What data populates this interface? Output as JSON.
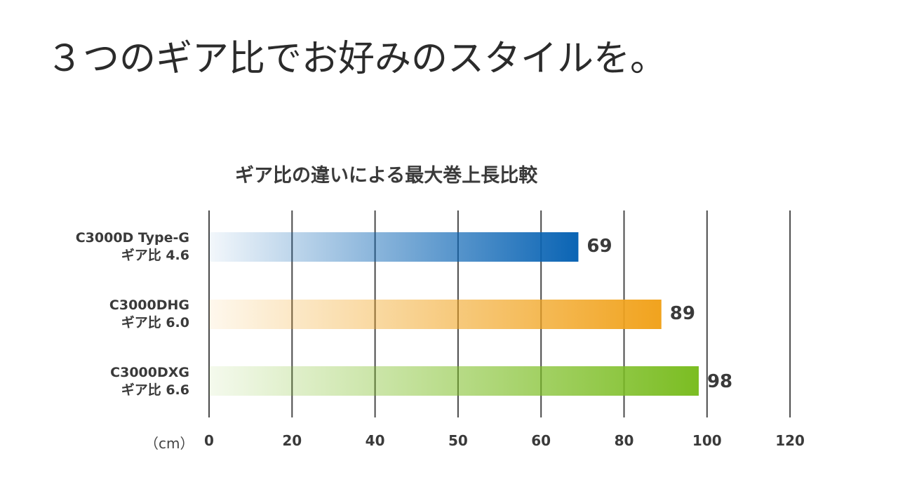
{
  "headline": "３つのギア比でお好みのスタイルを。",
  "chart_data": {
    "type": "bar",
    "orientation": "horizontal",
    "title": "ギア比の違いによる最大巻上長比較",
    "unit_label": "（cm）",
    "categories": [
      {
        "line1": "C3000D Type-G",
        "line2": "ギア比 4.6"
      },
      {
        "line1": "C3000DHG",
        "line2": "ギア比 6.0"
      },
      {
        "line1": "C3000DXG",
        "line2": "ギア比 6.6"
      }
    ],
    "values": [
      69,
      89,
      98
    ],
    "value_labels": [
      "69",
      "89",
      "98"
    ],
    "ticks": [
      "0",
      "20",
      "40",
      "50",
      "60",
      "80",
      "100",
      "120"
    ],
    "xlim": [
      0,
      120
    ],
    "grid": true,
    "colors": [
      "#0a64b4",
      "#f1a31e",
      "#7bbd22"
    ]
  }
}
